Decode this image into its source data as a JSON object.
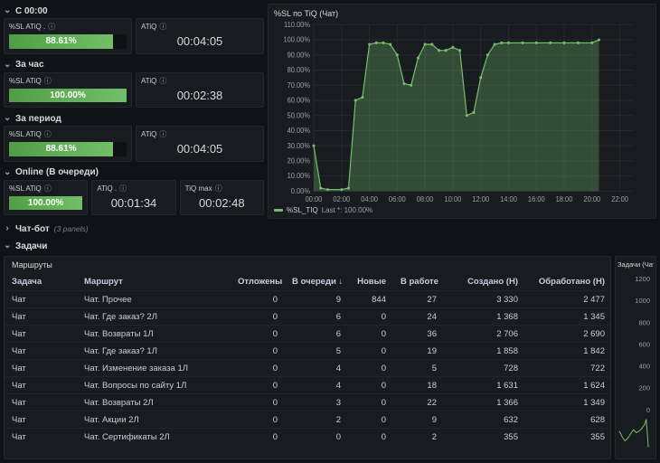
{
  "colors": {
    "green": "#73bf69",
    "green_fill": "rgba(115,191,105,0.30)",
    "gauge_start": "#4f9e44",
    "gauge_end": "#73bf69"
  },
  "stat_groups": [
    {
      "id": "from-midnight",
      "title": "С 00:00",
      "panels": [
        {
          "title": "%SL ATiQ .",
          "kind": "gauge",
          "value": "88.61%",
          "pct": 88.61
        },
        {
          "title": "ATiQ",
          "kind": "text",
          "value": "00:04:05"
        }
      ]
    },
    {
      "id": "hour",
      "title": "За час",
      "panels": [
        {
          "title": "%SL ATiQ",
          "kind": "gauge",
          "value": "100.00%",
          "pct": 100
        },
        {
          "title": "ATiQ",
          "kind": "text",
          "value": "00:02:38"
        }
      ]
    },
    {
      "id": "period",
      "title": "За период",
      "panels": [
        {
          "title": "%SL ATiQ",
          "kind": "gauge",
          "value": "88.61%",
          "pct": 88.61
        },
        {
          "title": "ATiQ",
          "kind": "text",
          "value": "00:04:05"
        }
      ]
    },
    {
      "id": "online",
      "title": "Online (В очереди)",
      "panels": [
        {
          "title": "%SL ATiQ",
          "kind": "gauge",
          "value": "100.00%",
          "pct": 100
        },
        {
          "title": "ATiQ .",
          "kind": "text",
          "value": "00:01:34"
        },
        {
          "title": "TiQ max",
          "kind": "text",
          "value": "00:02:48"
        }
      ]
    }
  ],
  "collapsed_row": {
    "title": "Чат-бот",
    "panel_count": "(3 panels)"
  },
  "tasks_row": {
    "title": "Задачи"
  },
  "table": {
    "title": "Маршруты",
    "columns": [
      "Задача",
      "Маршрут",
      "Отложены",
      "В очереди",
      "Новые",
      "В работе",
      "Создано (Н)",
      "Обработано (Н)"
    ],
    "sort_column": "В очереди",
    "rows": [
      [
        "Чат",
        "Чат. Прочее",
        "0",
        "9",
        "844",
        "27",
        "3 330",
        "2 477"
      ],
      [
        "Чат",
        "Чат. Где заказ? 2Л",
        "0",
        "6",
        "0",
        "24",
        "1 368",
        "1 345"
      ],
      [
        "Чат",
        "Чат. Возвраты 1Л",
        "0",
        "6",
        "0",
        "36",
        "2 706",
        "2 690"
      ],
      [
        "Чат",
        "Чат. Где заказ? 1Л",
        "0",
        "5",
        "0",
        "19",
        "1 858",
        "1 842"
      ],
      [
        "Чат",
        "Чат. Изменение заказа 1Л",
        "0",
        "4",
        "0",
        "5",
        "728",
        "722"
      ],
      [
        "Чат",
        "Чат. Вопросы по сайту 1Л",
        "0",
        "4",
        "0",
        "18",
        "1 631",
        "1 624"
      ],
      [
        "Чат",
        "Чат. Возвраты 2Л",
        "0",
        "3",
        "0",
        "22",
        "1 366",
        "1 349"
      ],
      [
        "Чат",
        "Чат. Акции 2Л",
        "0",
        "2",
        "0",
        "9",
        "632",
        "628"
      ],
      [
        "Чат",
        "Чат. Сертификаты 2Л",
        "0",
        "0",
        "0",
        "2",
        "355",
        "355"
      ]
    ]
  },
  "chart_data": [
    {
      "type": "area",
      "title": "%SL по TiQ (Чат)",
      "x_ticks": [
        "00:00",
        "02:00",
        "04:00",
        "06:00",
        "08:00",
        "10:00",
        "12:00",
        "14:00",
        "16:00",
        "18:00",
        "20:00",
        "22:00"
      ],
      "y_ticks": [
        "0.00%",
        "10.00%",
        "20.00%",
        "30.00%",
        "40.00%",
        "50.00%",
        "60.00%",
        "70.00%",
        "80.00%",
        "90.00%",
        "100.00%",
        "110.00%"
      ],
      "xlim": [
        0,
        23
      ],
      "ylim": [
        0,
        110
      ],
      "legend": {
        "label": "%SL_TIQ",
        "last": "Last *: 100.00%"
      },
      "series": [
        {
          "name": "%SL_TIQ",
          "color": "#73bf69",
          "points": [
            [
              0,
              30
            ],
            [
              0.5,
              2
            ],
            [
              1,
              1
            ],
            [
              2,
              1
            ],
            [
              2.5,
              2
            ],
            [
              3,
              60
            ],
            [
              3.5,
              62
            ],
            [
              4,
              97
            ],
            [
              4.5,
              98
            ],
            [
              5,
              98
            ],
            [
              5.5,
              97
            ],
            [
              6,
              90
            ],
            [
              6.5,
              71
            ],
            [
              7,
              70
            ],
            [
              7.5,
              88
            ],
            [
              8,
              97
            ],
            [
              8.5,
              97
            ],
            [
              9,
              93
            ],
            [
              9.5,
              93
            ],
            [
              10,
              95
            ],
            [
              10.5,
              93
            ],
            [
              11,
              50
            ],
            [
              11.5,
              52
            ],
            [
              12,
              75
            ],
            [
              12.5,
              90
            ],
            [
              13,
              97
            ],
            [
              13.5,
              98
            ],
            [
              14,
              98
            ],
            [
              15,
              98
            ],
            [
              16,
              98
            ],
            [
              17,
              98
            ],
            [
              18,
              98
            ],
            [
              19,
              98
            ],
            [
              20,
              98
            ],
            [
              20.5,
              100
            ]
          ]
        }
      ]
    },
    {
      "type": "line",
      "title": "Задачи (Чат",
      "y_ticks": [
        "1200",
        "1000",
        "800",
        "600",
        "400",
        "200",
        "0"
      ],
      "xlim": [
        0,
        23
      ],
      "ylim": [
        0,
        1200
      ],
      "series": [
        {
          "name": "Задачи",
          "color": "#73bf69",
          "points": [
            [
              0,
              150
            ],
            [
              2,
              110
            ],
            [
              4,
              80
            ],
            [
              6,
              100
            ],
            [
              8,
              130
            ],
            [
              10,
              160
            ],
            [
              12,
              140
            ],
            [
              14,
              150
            ],
            [
              16,
              170
            ],
            [
              18,
              200
            ],
            [
              19,
              235
            ],
            [
              20,
              110
            ],
            [
              20.5,
              35
            ]
          ]
        }
      ]
    }
  ]
}
